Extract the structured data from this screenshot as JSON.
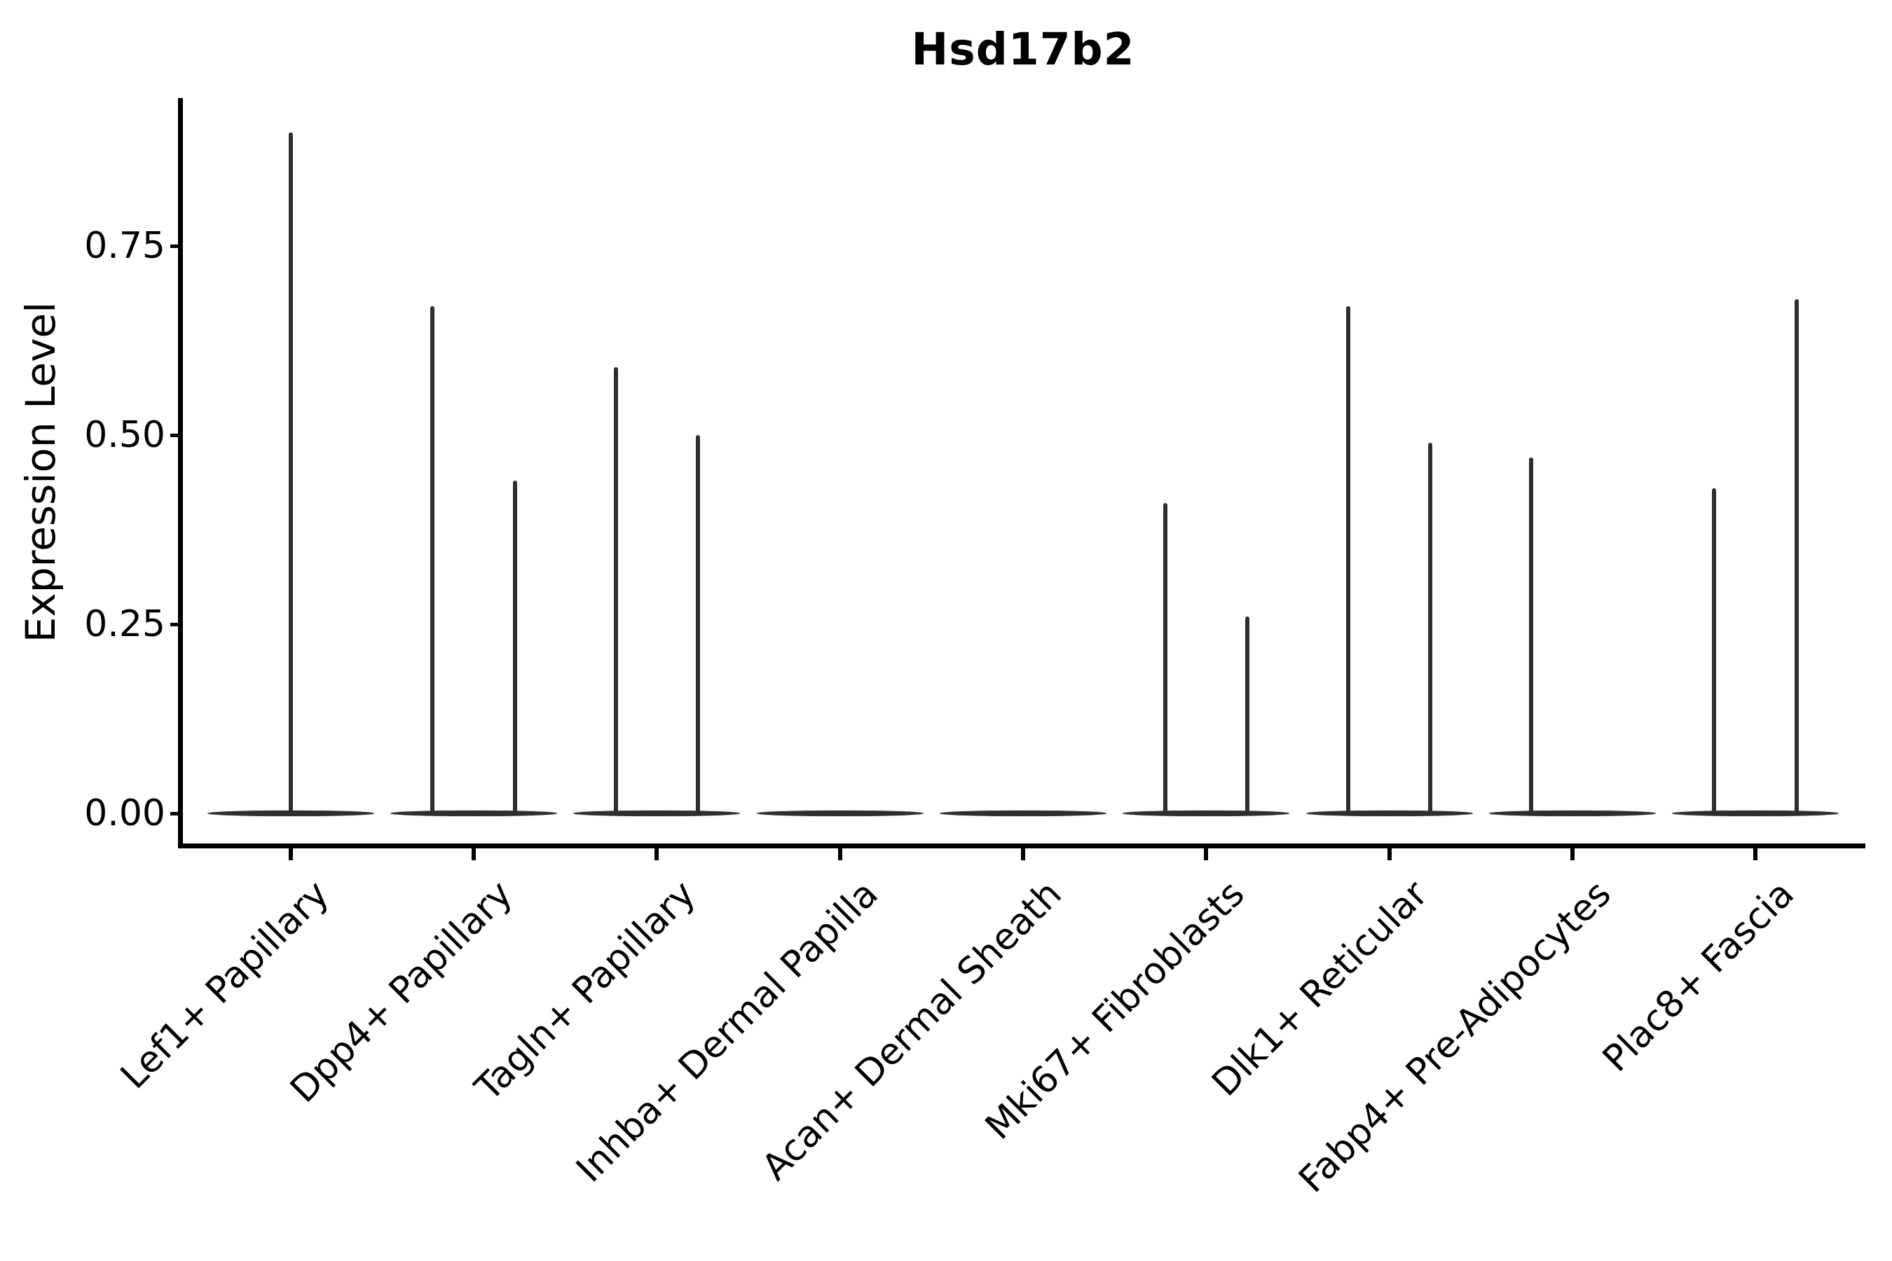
{
  "chart_data": {
    "type": "violin",
    "title": "Hsd17b2",
    "xlabel": "",
    "ylabel": "Expression Level",
    "ylim": [
      0,
      0.94
    ],
    "yticks": [
      0,
      0.25,
      0.5,
      0.75
    ],
    "ytick_labels": [
      "0.00",
      "0.25",
      "0.50",
      "0.75"
    ],
    "grid": false,
    "legend_position": "none",
    "categories": [
      "Lef1+ Papillary",
      "Dpp4+ Papillary",
      "Tagln+ Papillary",
      "Inhba+ Dermal Papilla",
      "Acan+ Dermal Sheath",
      "Mki67+ Fibroblasts",
      "Dlk1+ Reticular",
      "Fabp4+ Pre-Adipocytes",
      "Plac8+ Fascia"
    ],
    "groups": [
      {
        "category": "Lef1+ Papillary",
        "violins": [
          {
            "position": "center",
            "max_expression": 0.9
          }
        ]
      },
      {
        "category": "Dpp4+ Papillary",
        "violins": [
          {
            "position": "left",
            "max_expression": 0.67
          },
          {
            "position": "right",
            "max_expression": 0.44
          }
        ]
      },
      {
        "category": "Tagln+ Papillary",
        "violins": [
          {
            "position": "left",
            "max_expression": 0.59
          },
          {
            "position": "right",
            "max_expression": 0.5
          }
        ]
      },
      {
        "category": "Inhba+ Dermal Papilla",
        "violins": [
          {
            "position": "center",
            "max_expression": 0
          }
        ]
      },
      {
        "category": "Acan+ Dermal Sheath",
        "violins": [
          {
            "position": "center",
            "max_expression": 0
          }
        ]
      },
      {
        "category": "Mki67+ Fibroblasts",
        "violins": [
          {
            "position": "left",
            "max_expression": 0.41
          },
          {
            "position": "right",
            "max_expression": 0.26
          }
        ]
      },
      {
        "category": "Dlk1+ Reticular",
        "violins": [
          {
            "position": "left",
            "max_expression": 0.67
          },
          {
            "position": "right",
            "max_expression": 0.49
          }
        ]
      },
      {
        "category": "Fabp4+ Pre-Adipocytes",
        "violins": [
          {
            "position": "left",
            "max_expression": 0.47
          }
        ]
      },
      {
        "category": "Plac8+ Fascia",
        "violins": [
          {
            "position": "left",
            "max_expression": 0.43
          },
          {
            "position": "right",
            "max_expression": 0.68
          }
        ]
      }
    ],
    "style": {
      "violin_color": "#2e2e2e",
      "axis_color": "#000000",
      "text_color": "#000000",
      "background": "#ffffff"
    }
  }
}
